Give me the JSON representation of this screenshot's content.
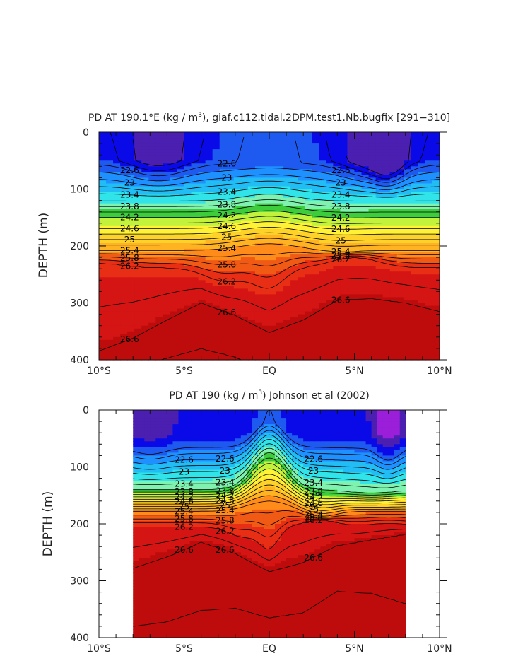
{
  "chart_data": [
    {
      "type": "contour",
      "title": "PD AT 190.1°E (kg / m³), giaf.c112.tidal.2DPM.test1.Nb.bugfix [291-310]",
      "title_parts": {
        "before": "PD AT 190.1°E (kg / m",
        "sup": "3",
        "after": "), giaf.c112.tidal.2DPM.test1.Nb.bugfix [291−310]"
      },
      "ylabel": "DEPTH (m)",
      "xlabel": "",
      "xlim": [
        -10,
        10
      ],
      "ylim": [
        400,
        0
      ],
      "x_ticks": [
        -10,
        -5,
        0,
        5,
        10
      ],
      "x_tick_labels": [
        "10°S",
        "5°S",
        "EQ",
        "5°N",
        "10°N"
      ],
      "y_ticks": [
        0,
        100,
        200,
        300,
        400
      ],
      "y_tick_labels": [
        "0",
        "100",
        "200",
        "300",
        "400"
      ],
      "data_extent_lat": [
        -10,
        10
      ],
      "contour_interval": 0.2,
      "contour_levels_labeled": [
        "22.6",
        "23",
        "23.4",
        "23.8",
        "24.2",
        "24.6",
        "25",
        "25.4",
        "25.8",
        "26.2",
        "26.6"
      ],
      "colormap": [
        "#4b1fb0",
        "#0a0ae8",
        "#1f5af0",
        "#1e90ff",
        "#22bdf5",
        "#30e4ea",
        "#7ff2b0",
        "#3ccc3c",
        "#c2f23c",
        "#fff236",
        "#ffd22a",
        "#ffb222",
        "#ff8c1a",
        "#f05a14",
        "#e82e14",
        "#d51414",
        "#be0c0c"
      ],
      "label_color": "#000000"
    },
    {
      "type": "contour",
      "title": "PD AT 190 (kg / m³) Johnson et al (2002)",
      "title_parts": {
        "before": "PD AT 190 (kg / m",
        "sup": "3",
        "after": ") Johnson et al (2002)"
      },
      "ylabel": "DEPTH (m)",
      "xlabel": "",
      "xlim": [
        -10,
        10
      ],
      "ylim": [
        400,
        0
      ],
      "x_ticks": [
        -10,
        -5,
        0,
        5,
        10
      ],
      "x_tick_labels": [
        "10°S",
        "5°S",
        "EQ",
        "5°N",
        "10°N"
      ],
      "y_ticks": [
        0,
        100,
        200,
        300,
        400
      ],
      "y_tick_labels": [
        "0",
        "100",
        "200",
        "300",
        "400"
      ],
      "data_extent_lat": [
        -8,
        8
      ],
      "contour_interval": 0.2,
      "contour_levels_labeled": [
        "22.6",
        "23",
        "23.4",
        "23.8",
        "24.2",
        "24.6",
        "25",
        "25.4",
        "25.8",
        "26.2",
        "26.6"
      ],
      "colormap": [
        "#9b1fd9",
        "#4b1fb0",
        "#0a0ae8",
        "#1f5af0",
        "#1e90ff",
        "#22bdf5",
        "#30e4ea",
        "#7ff2b0",
        "#3ccc3c",
        "#c2f23c",
        "#fff236",
        "#ffd22a",
        "#ffb222",
        "#ff8c1a",
        "#f05a14",
        "#e82e14",
        "#d51414",
        "#be0c0c"
      ],
      "label_color": "#000000"
    }
  ]
}
